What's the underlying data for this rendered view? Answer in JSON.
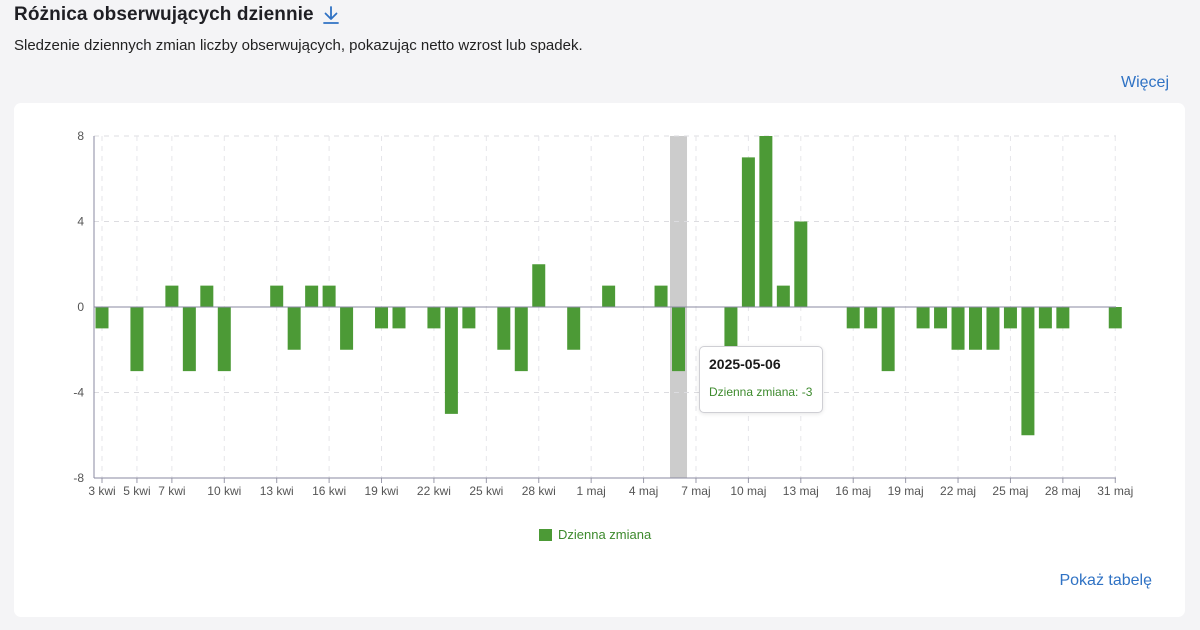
{
  "header": {
    "title": "Różnica obserwujących dziennie",
    "subtitle": "Sledzenie dziennych zmian liczby obserwujących, pokazując netto wzrost lub spadek.",
    "more_link": "Więcej"
  },
  "footer": {
    "show_table": "Pokaż tabelę"
  },
  "tooltip": {
    "date": "2025-05-06",
    "label": "Dzienna zmiana: -3"
  },
  "colors": {
    "bar": "#4c9a36",
    "highlight": "#cccccc",
    "link": "#2f72c4",
    "legend_text": "#3d8a2d"
  },
  "chart_data": {
    "type": "bar",
    "title": "Różnica obserwujących dziennie",
    "xlabel": "",
    "ylabel": "",
    "ylim": [
      -8,
      8
    ],
    "yticks": [
      8,
      4,
      0,
      -4,
      -8
    ],
    "grid": true,
    "legend_position": "bottom-center",
    "highlighted_category": "2025-05-06",
    "xtick_labels": [
      {
        "date": "2025-04-03",
        "label": "3 kwi"
      },
      {
        "date": "2025-04-05",
        "label": "5 kwi"
      },
      {
        "date": "2025-04-07",
        "label": "7 kwi"
      },
      {
        "date": "2025-04-10",
        "label": "10 kwi"
      },
      {
        "date": "2025-04-13",
        "label": "13 kwi"
      },
      {
        "date": "2025-04-16",
        "label": "16 kwi"
      },
      {
        "date": "2025-04-19",
        "label": "19 kwi"
      },
      {
        "date": "2025-04-22",
        "label": "22 kwi"
      },
      {
        "date": "2025-04-25",
        "label": "25 kwi"
      },
      {
        "date": "2025-04-28",
        "label": "28 kwi"
      },
      {
        "date": "2025-05-01",
        "label": "1 maj"
      },
      {
        "date": "2025-05-04",
        "label": "4 maj"
      },
      {
        "date": "2025-05-07",
        "label": "7 maj"
      },
      {
        "date": "2025-05-10",
        "label": "10 maj"
      },
      {
        "date": "2025-05-13",
        "label": "13 maj"
      },
      {
        "date": "2025-05-16",
        "label": "16 maj"
      },
      {
        "date": "2025-05-19",
        "label": "19 maj"
      },
      {
        "date": "2025-05-22",
        "label": "22 maj"
      },
      {
        "date": "2025-05-25",
        "label": "25 maj"
      },
      {
        "date": "2025-05-28",
        "label": "28 maj"
      },
      {
        "date": "2025-05-31",
        "label": "31 maj"
      }
    ],
    "categories": [
      "2025-04-03",
      "2025-04-04",
      "2025-04-05",
      "2025-04-06",
      "2025-04-07",
      "2025-04-08",
      "2025-04-09",
      "2025-04-10",
      "2025-04-11",
      "2025-04-12",
      "2025-04-13",
      "2025-04-14",
      "2025-04-15",
      "2025-04-16",
      "2025-04-17",
      "2025-04-18",
      "2025-04-19",
      "2025-04-20",
      "2025-04-21",
      "2025-04-22",
      "2025-04-23",
      "2025-04-24",
      "2025-04-25",
      "2025-04-26",
      "2025-04-27",
      "2025-04-28",
      "2025-04-29",
      "2025-04-30",
      "2025-05-01",
      "2025-05-02",
      "2025-05-03",
      "2025-05-04",
      "2025-05-05",
      "2025-05-06",
      "2025-05-07",
      "2025-05-08",
      "2025-05-09",
      "2025-05-10",
      "2025-05-11",
      "2025-05-12",
      "2025-05-13",
      "2025-05-14",
      "2025-05-15",
      "2025-05-16",
      "2025-05-17",
      "2025-05-18",
      "2025-05-19",
      "2025-05-20",
      "2025-05-21",
      "2025-05-22",
      "2025-05-23",
      "2025-05-24",
      "2025-05-25",
      "2025-05-26",
      "2025-05-27",
      "2025-05-28",
      "2025-05-29",
      "2025-05-30",
      "2025-05-31"
    ],
    "series": [
      {
        "name": "Dzienna zmiana",
        "values": [
          -1,
          0,
          -3,
          0,
          1,
          -3,
          1,
          -3,
          0,
          0,
          1,
          -2,
          1,
          1,
          -2,
          0,
          -1,
          -1,
          0,
          -1,
          -5,
          -1,
          0,
          -2,
          -3,
          2,
          0,
          -2,
          0,
          1,
          0,
          0,
          1,
          -3,
          0,
          0,
          -2,
          7,
          8,
          1,
          4,
          0,
          0,
          -1,
          -1,
          -3,
          0,
          -1,
          -1,
          -2,
          -2,
          -2,
          -1,
          -6,
          -1,
          -1,
          0,
          0,
          -1
        ]
      }
    ]
  }
}
